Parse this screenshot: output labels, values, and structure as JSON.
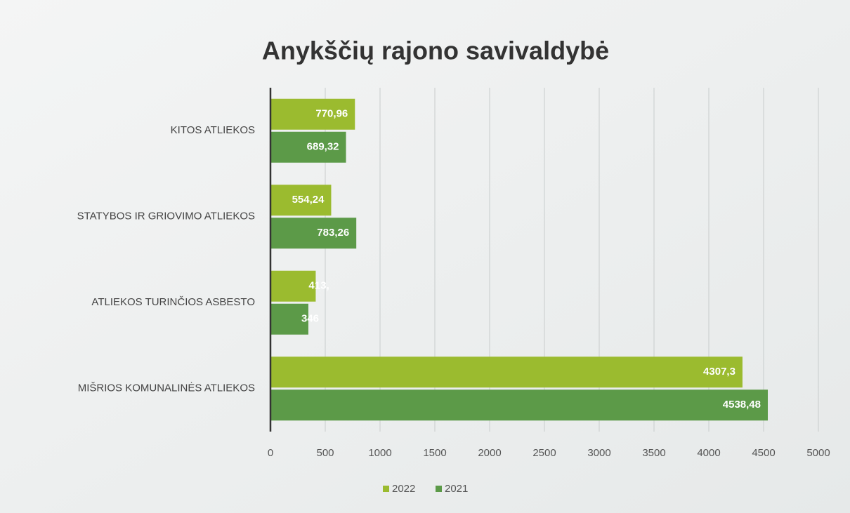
{
  "chart_data": {
    "type": "barh",
    "title": "Anykščių rajono savivaldybė",
    "categories": [
      "KITOS ATLIEKOS",
      "STATYBOS IR GRIOVIMO ATLIEKOS",
      "ATLIEKOS TURINČIOS ASBESTO",
      "MIŠRIOS KOMUNALINĖS ATLIEKOS"
    ],
    "series": [
      {
        "name": "2022",
        "color": "#9bbb2f",
        "values": [
          770.96,
          554.24,
          413,
          4307.3
        ],
        "value_labels": [
          "770,96",
          "554,24",
          "413,",
          "4307,3"
        ]
      },
      {
        "name": "2021",
        "color": "#5c9a48",
        "values": [
          689.32,
          783.26,
          346,
          4538.48
        ],
        "value_labels": [
          "689,32",
          "783,26",
          "346",
          "4538,48"
        ]
      }
    ],
    "xlim": [
      0,
      5000
    ],
    "xticks": [
      0,
      500,
      1000,
      1500,
      2000,
      2500,
      3000,
      3500,
      4000,
      4500,
      5000
    ],
    "grid": true,
    "legend": "bottom"
  }
}
